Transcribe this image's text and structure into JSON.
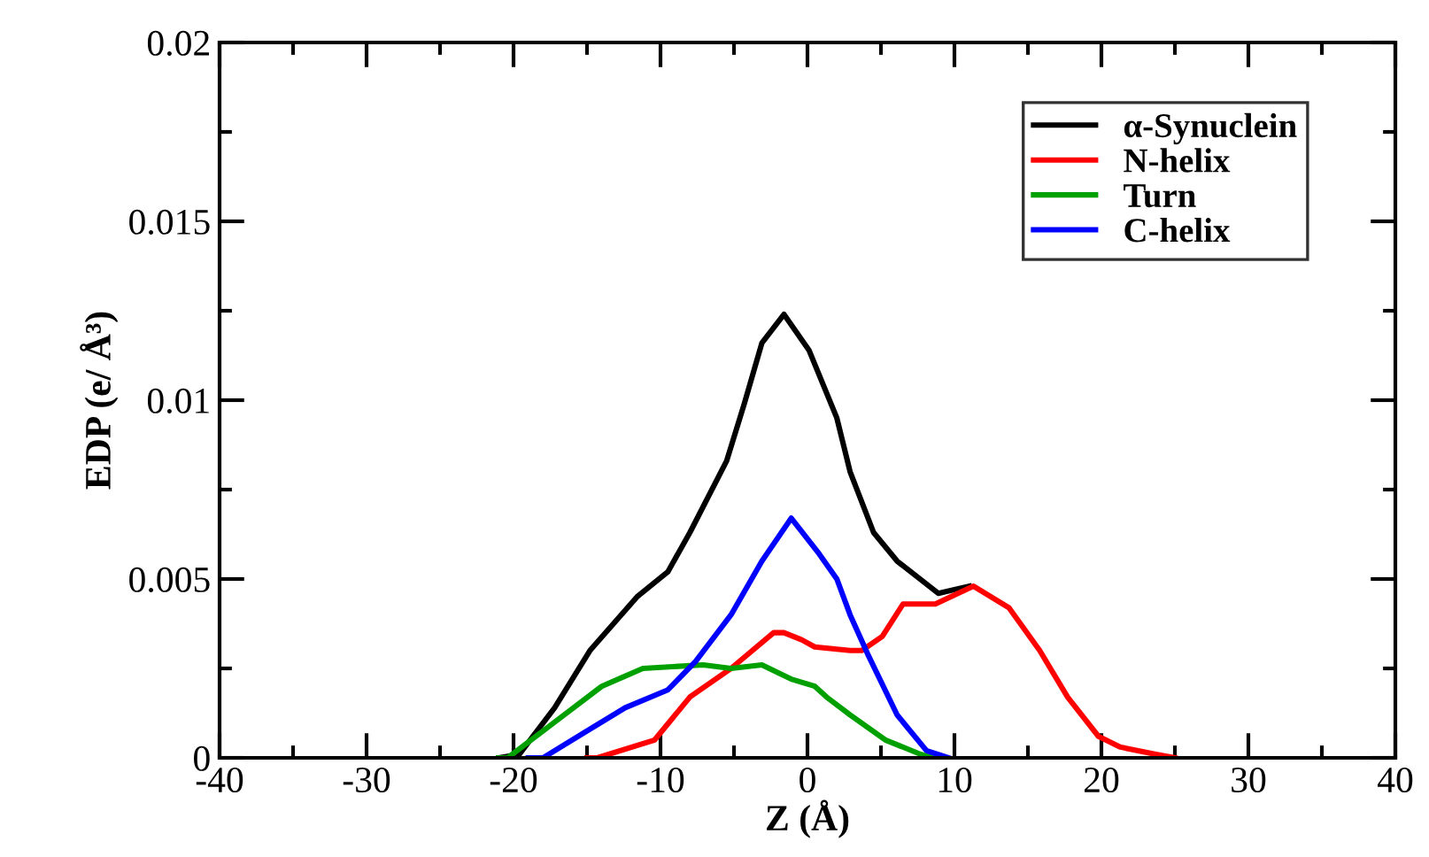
{
  "chart_data": {
    "type": "line",
    "xlabel": "Z (Å)",
    "ylabel": "EDP (e/ Å³)",
    "xlim": [
      -40,
      40
    ],
    "ylim": [
      0,
      0.02
    ],
    "xticks": [
      -40,
      -30,
      -20,
      -10,
      0,
      10,
      20,
      30,
      40
    ],
    "yticks": [
      0,
      0.005,
      0.01,
      0.015,
      0.02
    ],
    "legend": "top right",
    "grid": false,
    "series": [
      {
        "name": "α-Synuclein",
        "color": "#000000",
        "x": [
          -21,
          -19.6,
          -17.2,
          -14.8,
          -11.6,
          -9.5,
          -8,
          -5.5,
          -4.3,
          -3.1,
          -1.6,
          0.1,
          2,
          2.9,
          4.5,
          6.1,
          8.9,
          11
        ],
        "values": [
          0,
          0.0001,
          0.0014,
          0.003,
          0.0045,
          0.0052,
          0.0063,
          0.0083,
          0.0099,
          0.0116,
          0.0124,
          0.0114,
          0.0095,
          0.008,
          0.0063,
          0.0055,
          0.0046,
          0.0048
        ]
      },
      {
        "name": "N-helix",
        "color": "#ff0000",
        "x": [
          -15,
          -14.3,
          -10.4,
          -8,
          -5.2,
          -2.3,
          -1.6,
          -0.4,
          0.5,
          2.9,
          3.7,
          5.1,
          6.5,
          8.7,
          11.3,
          13.7,
          15.8,
          17.7,
          19.8,
          21.3,
          23.7,
          25
        ],
        "values": [
          0,
          0,
          0.0005,
          0.0017,
          0.0025,
          0.0035,
          0.0035,
          0.0033,
          0.0031,
          0.003,
          0.003,
          0.0034,
          0.0043,
          0.0043,
          0.0048,
          0.0042,
          0.003,
          0.0017,
          0.0006,
          0.0003,
          0.0001,
          0
        ]
      },
      {
        "name": "Turn",
        "color": "#00a000",
        "x": [
          -21,
          -20.4,
          -17.2,
          -14,
          -11.2,
          -7.1,
          -5.2,
          -3.1,
          -1.1,
          0.5,
          1.3,
          2.9,
          5.3,
          7.7,
          8.5
        ],
        "values": [
          0,
          0,
          0.001,
          0.002,
          0.0025,
          0.0026,
          0.0025,
          0.0026,
          0.0022,
          0.002,
          0.0017,
          0.0012,
          0.0005,
          0.0001,
          0
        ]
      },
      {
        "name": "C-helix",
        "color": "#0000ff",
        "x": [
          -19,
          -18,
          -15.2,
          -12.4,
          -9.5,
          -7.6,
          -5.2,
          -3.1,
          -1.1,
          0.8,
          2,
          2.9,
          4.1,
          6.1,
          8.1,
          9.6
        ],
        "values": [
          0,
          0,
          0.0007,
          0.0014,
          0.0019,
          0.0027,
          0.004,
          0.0055,
          0.0067,
          0.0057,
          0.005,
          0.004,
          0.0029,
          0.0012,
          0.0002,
          0
        ]
      }
    ]
  }
}
